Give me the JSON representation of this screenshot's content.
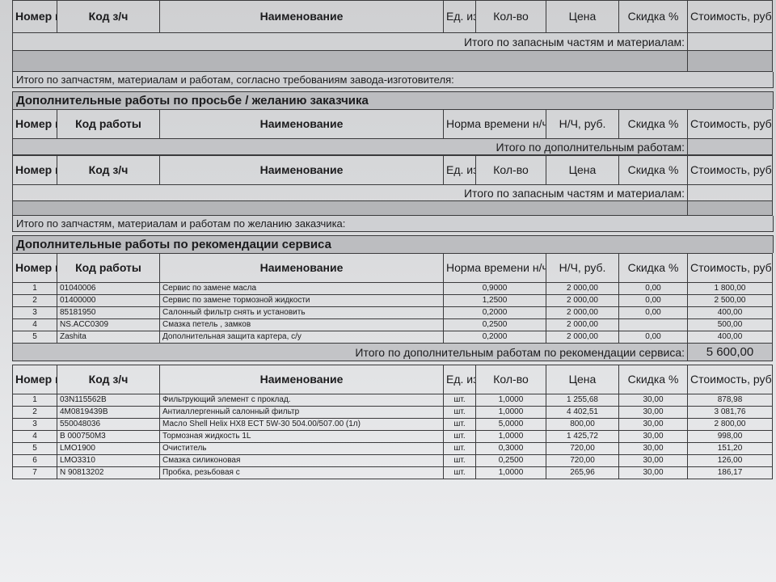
{
  "parts_header": {
    "num": "Номер п/п",
    "code": "Код з/ч",
    "name": "Наименование",
    "unit": "Ед. изм.",
    "qty": "Кол-во",
    "price": "Цена",
    "discount": "Скидка %",
    "cost": "Стоимость, руб"
  },
  "works_header": {
    "num": "Номер п/п",
    "code": "Код работы",
    "name": "Наименование",
    "norm": "Норма времени н/ч",
    "rate": "Н/Ч, руб.",
    "discount": "Скидка %",
    "cost": "Стоимость, руб"
  },
  "section1": {
    "parts_total_label": "Итого по запасным частям и материалам:",
    "total_label": "Итого по запчастям, материалам и работам, согласно требованиям завода-изготовителя:"
  },
  "section2": {
    "title": "Дополнительные работы по просьбе / желанию заказчика",
    "works_total_label": "Итого по дополнительным работам:",
    "parts_total_label": "Итого по запасным частям и материалам:",
    "total_label": "Итого по запчастям, материалам и работам по желанию заказчика:"
  },
  "section3": {
    "title": "Дополнительные работы по рекомендации сервиса",
    "works": [
      [
        "1",
        "01040006",
        "Сервис по замене масла",
        "0,9000",
        "2 000,00",
        "0,00",
        "1 800,00"
      ],
      [
        "2",
        "01400000",
        "Сервис по замене тормозной жидкости",
        "1,2500",
        "2 000,00",
        "0,00",
        "2 500,00"
      ],
      [
        "3",
        "85181950",
        "Салонный фильтр снять и установить",
        "0,2000",
        "2 000,00",
        "0,00",
        "400,00"
      ],
      [
        "4",
        "NS.ACC0309",
        "Смазка петель , замков",
        "0,2500",
        "2 000,00",
        "",
        "500,00"
      ],
      [
        "5",
        "Zashita",
        "Дополнительная защита картера, с/у",
        "0,2000",
        "2 000,00",
        "0,00",
        "400,00"
      ]
    ],
    "works_total_label": "Итого по дополнительным работам по рекомендации сервиса:",
    "works_total": "5 600,00",
    "parts": [
      [
        "1",
        "03N115562B",
        "Фильтрующий элемент с проклад.",
        "шт.",
        "1,0000",
        "1 255,68",
        "30,00",
        "878,98"
      ],
      [
        "2",
        "4M0819439B",
        "Антиаллергенный салонный фильтр",
        "шт.",
        "1,0000",
        "4 402,51",
        "30,00",
        "3 081,76"
      ],
      [
        "3",
        "550048036",
        "Масло Shell Helix HX8 ECT 5W-30 504.00/507.00 (1л)",
        "шт.",
        "5,0000",
        "800,00",
        "30,00",
        "2 800,00"
      ],
      [
        "4",
        "B  000750M3",
        "Тормозная жидкость 1L",
        "шт.",
        "1,0000",
        "1 425,72",
        "30,00",
        "998,00"
      ],
      [
        "5",
        "LMO1900",
        "Очиститель",
        "шт.",
        "0,3000",
        "720,00",
        "30,00",
        "151,20"
      ],
      [
        "6",
        "LMO3310",
        "Смазка силиконовая",
        "шт.",
        "0,2500",
        "720,00",
        "30,00",
        "126,00"
      ],
      [
        "7",
        "N  90813202",
        "Пробка, резьбовая с",
        "шт.",
        "1,0000",
        "265,96",
        "30,00",
        "186,17"
      ]
    ]
  }
}
